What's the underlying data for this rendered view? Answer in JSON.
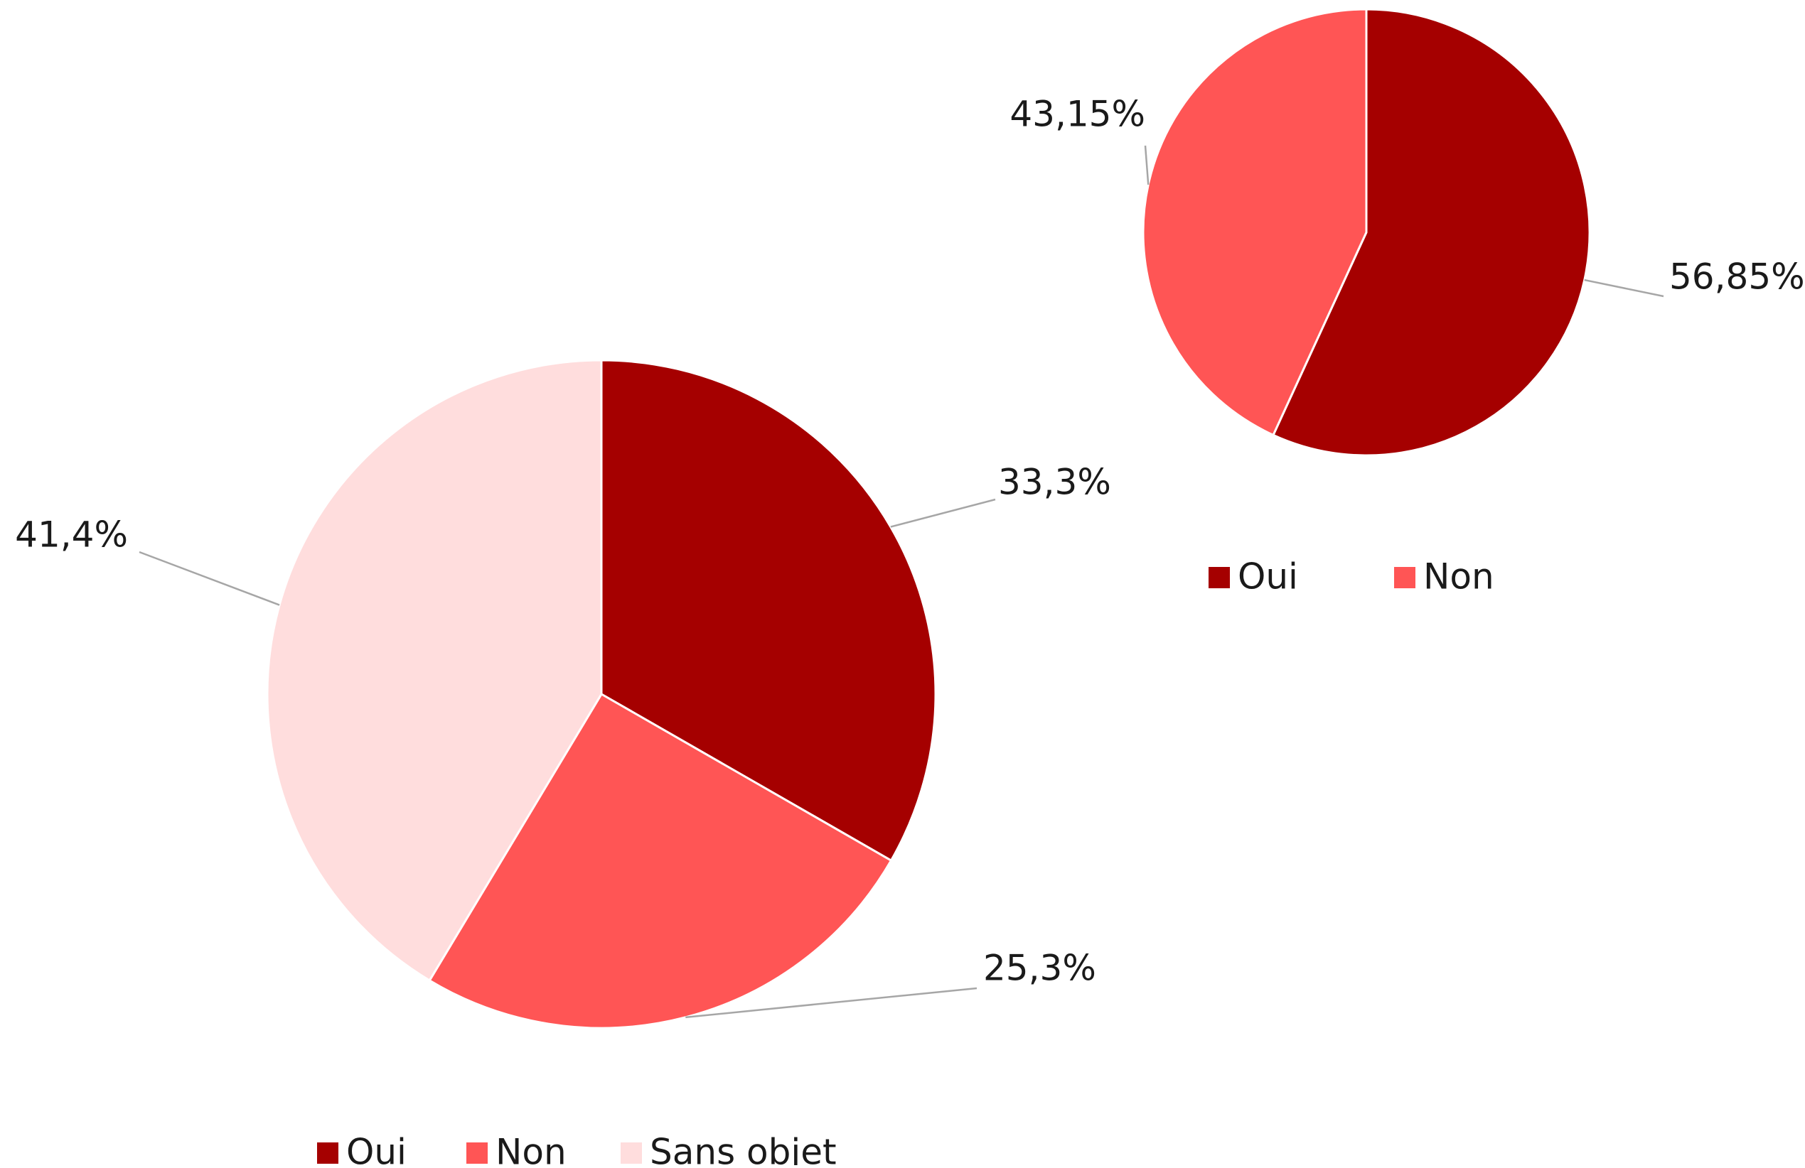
{
  "chart_data": [
    {
      "type": "pie",
      "categories": [
        "Oui",
        "Non",
        "Sans objet"
      ],
      "values": [
        33.3,
        25.3,
        41.4
      ],
      "value_labels": [
        "33,3%",
        "25,3%",
        "41,4%"
      ],
      "colors": [
        "#a50000",
        "#ff5555",
        "#ffdddd"
      ],
      "legend": "bottom"
    },
    {
      "type": "pie",
      "categories": [
        "Oui",
        "Non"
      ],
      "values": [
        56.85,
        43.15
      ],
      "value_labels": [
        "56,85%",
        "43,15%"
      ],
      "colors": [
        "#a50000",
        "#ff5555"
      ],
      "legend": "bottom"
    }
  ]
}
